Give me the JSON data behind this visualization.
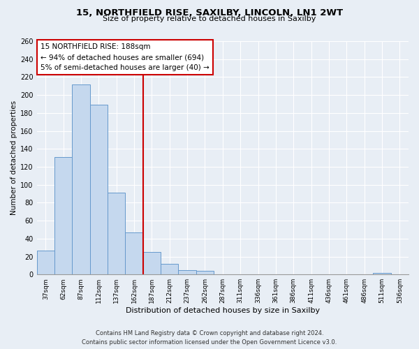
{
  "title": "15, NORTHFIELD RISE, SAXILBY, LINCOLN, LN1 2WT",
  "subtitle": "Size of property relative to detached houses in Saxilby",
  "xlabel": "Distribution of detached houses by size in Saxilby",
  "ylabel": "Number of detached properties",
  "bar_labels": [
    "37sqm",
    "62sqm",
    "87sqm",
    "112sqm",
    "137sqm",
    "162sqm",
    "187sqm",
    "212sqm",
    "237sqm",
    "262sqm",
    "287sqm",
    "311sqm",
    "336sqm",
    "361sqm",
    "386sqm",
    "411sqm",
    "436sqm",
    "461sqm",
    "486sqm",
    "511sqm",
    "536sqm"
  ],
  "bar_values": [
    27,
    131,
    212,
    189,
    91,
    47,
    25,
    12,
    5,
    4,
    0,
    0,
    0,
    0,
    0,
    0,
    0,
    0,
    0,
    2,
    0
  ],
  "bar_color": "#c5d8ee",
  "bar_edge_color": "#6699cc",
  "property_line_color": "#cc0000",
  "ylim": [
    0,
    260
  ],
  "yticks": [
    0,
    20,
    40,
    60,
    80,
    100,
    120,
    140,
    160,
    180,
    200,
    220,
    240,
    260
  ],
  "annotation_title": "15 NORTHFIELD RISE: 188sqm",
  "annotation_line1": "← 94% of detached houses are smaller (694)",
  "annotation_line2": "5% of semi-detached houses are larger (40) →",
  "annotation_box_color": "#ffffff",
  "annotation_box_edge": "#cc0000",
  "footer_line1": "Contains HM Land Registry data © Crown copyright and database right 2024.",
  "footer_line2": "Contains public sector information licensed under the Open Government Licence v3.0.",
  "background_color": "#e8eef5",
  "grid_color": "#ffffff",
  "plot_bg_color": "#e8eef5"
}
